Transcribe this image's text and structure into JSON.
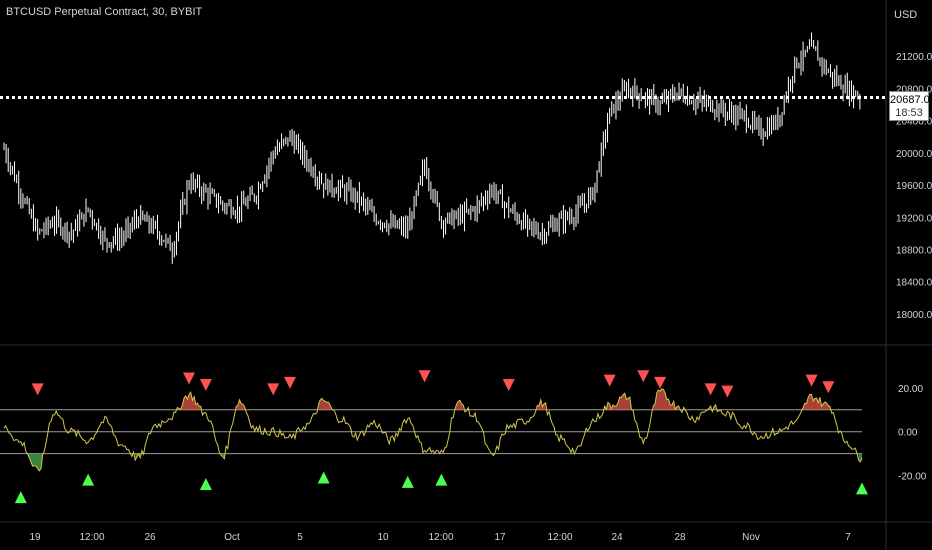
{
  "header": {
    "title": "BTCUSD Perpetual Contract, 30, BYBIT"
  },
  "price_axis": {
    "currency": "USD",
    "ticks": [
      "21200.0",
      "20800.0",
      "20400.0",
      "20000.0",
      "19600.0",
      "19200.0",
      "18800.0",
      "18400.0",
      "18000.0"
    ],
    "current_price": "20687.0",
    "countdown": "18:53"
  },
  "osc_axis": {
    "ticks": [
      "20.00",
      "0.00",
      "-20.00"
    ]
  },
  "time_axis": {
    "labels": [
      "19",
      "12:00",
      "26",
      "Oct",
      "5",
      "10",
      "12:00",
      "17",
      "12:00",
      "24",
      "28",
      "Nov",
      "7"
    ]
  },
  "colors": {
    "background": "#000000",
    "price_candles": "#ffffff",
    "oscillator_line": "#d4c84a",
    "overbought_fill": "#e0584a",
    "oversold_fill": "#4caf50",
    "sell_marker": "#ff5252",
    "buy_marker": "#4cff4c",
    "band_lines": "#9e9e9e",
    "grid_lines": "#333333"
  },
  "chart_data": [
    {
      "type": "candlestick",
      "title": "BTCUSD Perpetual Contract, 30, BYBIT",
      "ylabel": "USD",
      "ylim": [
        17800,
        21550
      ],
      "current_price": 20687.0,
      "x": [
        "Sep 18",
        "Sep 19",
        "Sep 20",
        "Sep 21",
        "Sep 22",
        "Sep 23",
        "Sep 24",
        "Sep 25",
        "Sep 26",
        "Sep 27",
        "Sep 28",
        "Sep 29",
        "Sep 30",
        "Oct 1",
        "Oct 2",
        "Oct 3",
        "Oct 4",
        "Oct 5",
        "Oct 6",
        "Oct 7",
        "Oct 8",
        "Oct 9",
        "Oct 10",
        "Oct 11",
        "Oct 12",
        "Oct 13",
        "Oct 14",
        "Oct 15",
        "Oct 16",
        "Oct 17",
        "Oct 18",
        "Oct 19",
        "Oct 20",
        "Oct 21",
        "Oct 22",
        "Oct 23",
        "Oct 24",
        "Oct 25",
        "Oct 26",
        "Oct 27",
        "Oct 28",
        "Oct 29",
        "Oct 30",
        "Oct 31",
        "Nov 1",
        "Nov 2",
        "Nov 3",
        "Nov 4",
        "Nov 5",
        "Nov 6",
        "Nov 7",
        "Nov 8"
      ],
      "close": [
        20050,
        19500,
        19000,
        19150,
        19000,
        19300,
        18900,
        18950,
        19200,
        19050,
        18800,
        19650,
        19500,
        19350,
        19300,
        19500,
        20000,
        20200,
        19900,
        19600,
        19550,
        19450,
        19200,
        19100,
        19050,
        19850,
        19150,
        19200,
        19300,
        19550,
        19300,
        19100,
        19000,
        19150,
        19250,
        19500,
        20500,
        20800,
        20700,
        20600,
        20750,
        20650,
        20600,
        20500,
        20450,
        20250,
        20400,
        21100,
        21300,
        21000,
        20800,
        20687
      ]
    },
    {
      "type": "line",
      "ylim": [
        -38,
        35
      ],
      "bands": [
        10,
        0,
        -10
      ],
      "x": [
        "Sep 18",
        "Sep 19",
        "Sep 20",
        "Sep 21",
        "Sep 22",
        "Sep 23",
        "Sep 24",
        "Sep 25",
        "Sep 26",
        "Sep 27",
        "Sep 28",
        "Sep 29",
        "Sep 30",
        "Oct 1",
        "Oct 2",
        "Oct 3",
        "Oct 4",
        "Oct 5",
        "Oct 6",
        "Oct 7",
        "Oct 8",
        "Oct 9",
        "Oct 10",
        "Oct 11",
        "Oct 12",
        "Oct 13",
        "Oct 14",
        "Oct 15",
        "Oct 16",
        "Oct 17",
        "Oct 18",
        "Oct 19",
        "Oct 20",
        "Oct 21",
        "Oct 22",
        "Oct 23",
        "Oct 24",
        "Oct 25",
        "Oct 26",
        "Oct 27",
        "Oct 28",
        "Oct 29",
        "Oct 30",
        "Oct 31",
        "Nov 1",
        "Nov 2",
        "Nov 3",
        "Nov 4",
        "Nov 5",
        "Nov 6",
        "Nov 7",
        "Nov 8"
      ],
      "values": [
        2,
        -5,
        -18,
        9,
        0,
        -4,
        5,
        -6,
        -12,
        3,
        7,
        17,
        8,
        -11,
        14,
        1,
        0,
        -3,
        3,
        14,
        6,
        -2,
        4,
        -4,
        6,
        -8,
        -10,
        13,
        7,
        -11,
        2,
        5,
        13,
        -3,
        -9,
        5,
        12,
        16,
        -4,
        18,
        12,
        6,
        11,
        8,
        3,
        -2,
        0,
        4,
        16,
        12,
        -4,
        -12
      ]
    }
  ],
  "sell_signals": [
    {
      "date": "Sep 20",
      "value": 12
    },
    {
      "date": "Sep 29",
      "value": 17
    },
    {
      "date": "Sep 30",
      "value": 14
    },
    {
      "date": "Oct 4",
      "value": 12
    },
    {
      "date": "Oct 5",
      "value": 15
    },
    {
      "date": "Oct 13",
      "value": 18
    },
    {
      "date": "Oct 18",
      "value": 14
    },
    {
      "date": "Oct 24",
      "value": 16
    },
    {
      "date": "Oct 26",
      "value": 18
    },
    {
      "date": "Oct 27",
      "value": 15
    },
    {
      "date": "Oct 30",
      "value": 12
    },
    {
      "date": "Oct 31",
      "value": 11
    },
    {
      "date": "Nov 5",
      "value": 16
    },
    {
      "date": "Nov 6",
      "value": 13
    }
  ],
  "buy_signals": [
    {
      "date": "Sep 19",
      "value": -18
    },
    {
      "date": "Sep 23",
      "value": -10
    },
    {
      "date": "Sep 30",
      "value": -12
    },
    {
      "date": "Oct 7",
      "value": -9
    },
    {
      "date": "Oct 12",
      "value": -11
    },
    {
      "date": "Oct 14",
      "value": -10
    },
    {
      "date": "Nov 8",
      "value": -14
    }
  ]
}
